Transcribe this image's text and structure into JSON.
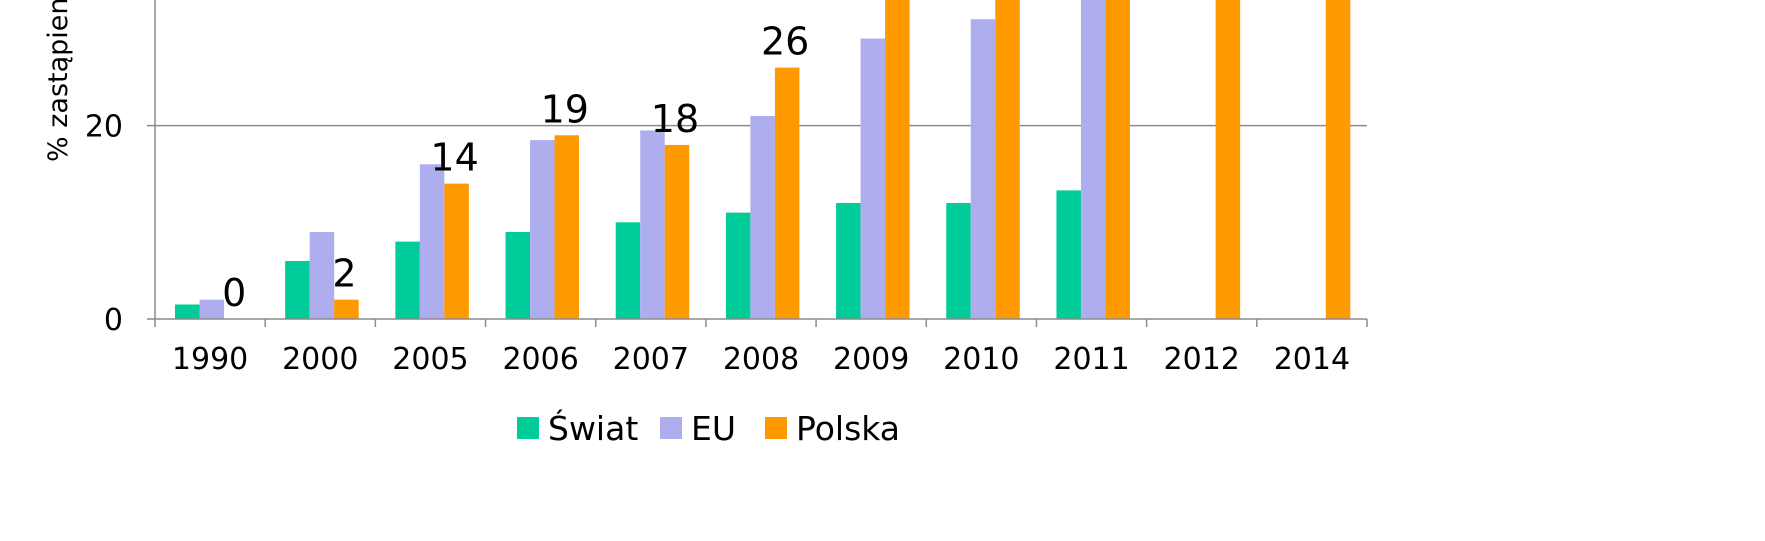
{
  "chart_data": {
    "type": "bar",
    "ylabel": "% zastąpieni",
    "categories": [
      "1990",
      "2000",
      "2005",
      "2006",
      "2007",
      "2008",
      "2009",
      "2010",
      "2011",
      "2012",
      "2014"
    ],
    "y_ticks": [
      "0",
      "20"
    ],
    "ylim": [
      0,
      34
    ],
    "grid": true,
    "legend_position": "bottom",
    "series": [
      {
        "name": "Świat",
        "color": "#00CC99",
        "values": [
          1.5,
          6,
          8,
          9,
          10,
          11,
          12,
          12,
          13.3,
          null,
          null
        ]
      },
      {
        "name": "EU",
        "color": "#AEAEEE",
        "values": [
          2,
          9,
          16,
          18.5,
          19.5,
          21,
          29,
          31,
          34,
          null,
          null
        ]
      },
      {
        "name": "Polska",
        "color": "#FF9900",
        "values": [
          0,
          2,
          14,
          19,
          18,
          26,
          34,
          34,
          34,
          34,
          34
        ]
      }
    ],
    "data_labels": [
      {
        "category": "1990",
        "text": "0"
      },
      {
        "category": "2000",
        "text": "2"
      },
      {
        "category": "2005",
        "text": "14"
      },
      {
        "category": "2006",
        "text": "19"
      },
      {
        "category": "2007",
        "text": "18"
      },
      {
        "category": "2008",
        "text": "26"
      }
    ]
  }
}
